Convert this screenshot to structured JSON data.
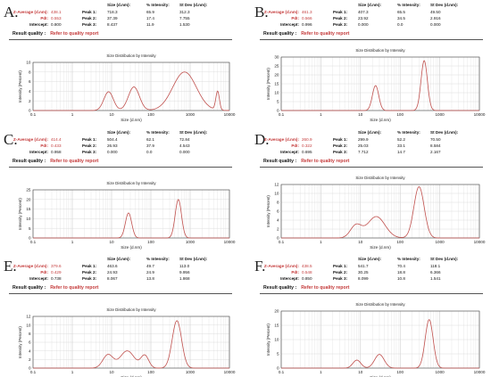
{
  "labels": {
    "size_header": "Size (d.nm):",
    "intensity_header": "% Intensity:",
    "stdev_header": "St Dev (d.nm):",
    "z_average": "Z-Average (d.nm):",
    "pdi": "PdI:",
    "intercept": "Intercept:",
    "result_quality": "Result quality :",
    "refer": "Refer to quality report",
    "peak1": "Peak 1:",
    "peak2": "Peak 2:",
    "peak3": "Peak 3:"
  },
  "colors": {
    "trace": "#c0504d",
    "highlight": "#c43a3a",
    "axis": "#444444",
    "grid": "#d6d6d6"
  },
  "panels": [
    {
      "letter": "A.",
      "z_average": "438.1",
      "pdi": "0.553",
      "intercept": "0.800",
      "peaks": [
        {
          "label": "Peak 1:",
          "size": "718.3",
          "intensity": "65.9",
          "stdev": "312.3"
        },
        {
          "label": "Peak 2:",
          "size": "37.39",
          "intensity": "17.4",
          "stdev": "7.755"
        },
        {
          "label": "Peak 3:",
          "size": "8.437",
          "intensity": "11.9",
          "stdev": "1.530"
        }
      ]
    },
    {
      "letter": "B.",
      "z_average": "461.3",
      "pdi": "0.566",
      "intercept": "0.996",
      "peaks": [
        {
          "label": "Peak 1:",
          "size": "407.3",
          "intensity": "65.5",
          "stdev": "49.50"
        },
        {
          "label": "Peak 2:",
          "size": "23.92",
          "intensity": "34.5",
          "stdev": "2.916"
        },
        {
          "label": "Peak 3:",
          "size": "0.000",
          "intensity": "0.0",
          "stdev": "0.000"
        }
      ]
    },
    {
      "letter": "C.",
      "z_average": "414.4",
      "pdi": "0.433",
      "intercept": "0.958",
      "peaks": [
        {
          "label": "Peak 1:",
          "size": "504.4",
          "intensity": "62.1",
          "stdev": "72.84"
        },
        {
          "label": "Peak 2:",
          "size": "26.93",
          "intensity": "37.9",
          "stdev": "4.543"
        },
        {
          "label": "Peak 3:",
          "size": "0.000",
          "intensity": "0.0",
          "stdev": "0.000"
        }
      ]
    },
    {
      "letter": "D.",
      "z_average": "260.9",
      "pdi": "0.322",
      "intercept": "0.695",
      "peaks": [
        {
          "label": "Peak 1:",
          "size": "299.9",
          "intensity": "52.2",
          "stdev": "70.50"
        },
        {
          "label": "Peak 2:",
          "size": "25.03",
          "intensity": "33.1",
          "stdev": "8.584"
        },
        {
          "label": "Peak 3:",
          "size": "7.712",
          "intensity": "14.7",
          "stdev": "2.167"
        }
      ]
    },
    {
      "letter": "E.",
      "z_average": "379.6",
      "pdi": "0.429",
      "intercept": "0.738",
      "peaks": [
        {
          "label": "Peak 1:",
          "size": "463.6",
          "intensity": "49.7",
          "stdev": "113.0"
        },
        {
          "label": "Peak 2:",
          "size": "24.93",
          "intensity": "24.9",
          "stdev": "9.956"
        },
        {
          "label": "Peak 3:",
          "size": "8.067",
          "intensity": "13.8",
          "stdev": "1.868"
        }
      ]
    },
    {
      "letter": "F.",
      "z_average": "438.5",
      "pdi": "0.548",
      "intercept": "0.850",
      "peaks": [
        {
          "label": "Peak 1:",
          "size": "541.7",
          "intensity": "70.4",
          "stdev": "118.1"
        },
        {
          "label": "Peak 2:",
          "size": "30.25",
          "intensity": "18.8",
          "stdev": "6.366"
        },
        {
          "label": "Peak 3:",
          "size": "8.099",
          "intensity": "10.8",
          "stdev": "1.541"
        }
      ]
    }
  ],
  "chart_data": [
    {
      "panel": "A.",
      "type": "line",
      "title": "Size Distribution by Intensity",
      "xlabel": "Size (d.nm)",
      "ylabel": "Intensity (Percent)",
      "x_scale": "log",
      "xlim": [
        0.1,
        10000
      ],
      "ylim": [
        0,
        10
      ],
      "yticks": [
        0,
        2,
        4,
        6,
        8,
        10
      ],
      "xticks": [
        0.1,
        1,
        10,
        100,
        1000,
        10000
      ],
      "xtick_labels": [
        "0.1",
        "1",
        "10",
        "100",
        "1000",
        "10000"
      ],
      "grid": true,
      "peaks": [
        {
          "x": 8.4,
          "y": 3.9,
          "width_decades": 0.12
        },
        {
          "x": 37,
          "y": 4.9,
          "width_decades": 0.14
        },
        {
          "x": 720,
          "y": 8.0,
          "width_decades": 0.3
        },
        {
          "x": 5000,
          "y": 3.9,
          "width_decades": 0.045
        }
      ]
    },
    {
      "panel": "B.",
      "type": "line",
      "title": "Size Distribution by Intensity",
      "xlabel": "Size (d.nm)",
      "ylabel": "Intensity (Percent)",
      "x_scale": "log",
      "xlim": [
        0.1,
        10000
      ],
      "ylim": [
        0,
        30
      ],
      "yticks": [
        0,
        5,
        10,
        15,
        20,
        25,
        30
      ],
      "xticks": [
        0.1,
        1,
        10,
        100,
        1000,
        10000
      ],
      "xtick_labels": [
        "0.1",
        "1",
        "10",
        "100",
        "1000",
        "10000"
      ],
      "grid": true,
      "peaks": [
        {
          "x": 24,
          "y": 14,
          "width_decades": 0.08
        },
        {
          "x": 405,
          "y": 28,
          "width_decades": 0.08
        }
      ]
    },
    {
      "panel": "C.",
      "type": "line",
      "title": "Size Distribution by Intensity",
      "xlabel": "Size (d.nm)",
      "ylabel": "Intensity (Percent)",
      "x_scale": "log",
      "xlim": [
        0.1,
        10000
      ],
      "ylim": [
        0,
        25
      ],
      "yticks": [
        0,
        5,
        10,
        15,
        20,
        25
      ],
      "xticks": [
        0.1,
        1,
        10,
        100,
        1000,
        10000
      ],
      "xtick_labels": [
        "0.1",
        "1",
        "10",
        "100",
        "1000",
        "10000"
      ],
      "grid": true,
      "peaks": [
        {
          "x": 27,
          "y": 13,
          "width_decades": 0.08
        },
        {
          "x": 500,
          "y": 20,
          "width_decades": 0.08
        }
      ]
    },
    {
      "panel": "D.",
      "type": "line",
      "title": "Size Distribution by Intensity",
      "xlabel": "Size (d.nm)",
      "ylabel": "Intensity (Percent)",
      "x_scale": "log",
      "xlim": [
        0.1,
        10000
      ],
      "ylim": [
        0,
        12
      ],
      "yticks": [
        0,
        2,
        4,
        6,
        8,
        10,
        12
      ],
      "xticks": [
        0.1,
        1,
        10,
        100,
        1000,
        10000
      ],
      "xtick_labels": [
        "0.1",
        "1",
        "10",
        "100",
        "1000",
        "10000"
      ],
      "grid": true,
      "peaks": [
        {
          "x": 7.7,
          "y": 2.8,
          "width_decades": 0.14
        },
        {
          "x": 25,
          "y": 4.8,
          "width_decades": 0.22
        },
        {
          "x": 300,
          "y": 11.5,
          "width_decades": 0.13
        }
      ]
    },
    {
      "panel": "E.",
      "type": "line",
      "title": "Size Distribution by Intensity",
      "xlabel": "Size (d.nm)",
      "ylabel": "Intensity (Percent)",
      "x_scale": "log",
      "xlim": [
        0.1,
        10000
      ],
      "ylim": [
        0,
        12
      ],
      "yticks": [
        0,
        2,
        4,
        6,
        8,
        10,
        12
      ],
      "xticks": [
        0.1,
        1,
        10,
        100,
        1000,
        10000
      ],
      "xtick_labels": [
        "0.1",
        "1",
        "10",
        "100",
        "1000",
        "10000"
      ],
      "grid": true,
      "peaks": [
        {
          "x": 8.1,
          "y": 3.1,
          "width_decades": 0.13
        },
        {
          "x": 25,
          "y": 4.0,
          "width_decades": 0.18
        },
        {
          "x": 70,
          "y": 2.9,
          "width_decades": 0.1
        },
        {
          "x": 460,
          "y": 11.0,
          "width_decades": 0.12
        }
      ]
    },
    {
      "panel": "F.",
      "type": "line",
      "title": "Size Distribution by Intensity",
      "xlabel": "Size (d.nm)",
      "ylabel": "Intensity (Percent)",
      "x_scale": "log",
      "xlim": [
        0.1,
        10000
      ],
      "ylim": [
        0,
        20
      ],
      "yticks": [
        0,
        5,
        10,
        15,
        20
      ],
      "xticks": [
        0.1,
        1,
        10,
        100,
        1000,
        10000
      ],
      "xtick_labels": [
        "0.1",
        "1",
        "10",
        "100",
        "1000",
        "10000"
      ],
      "grid": true,
      "peaks": [
        {
          "x": 8.1,
          "y": 2.8,
          "width_decades": 0.1
        },
        {
          "x": 30,
          "y": 4.8,
          "width_decades": 0.12
        },
        {
          "x": 540,
          "y": 17.0,
          "width_decades": 0.1
        }
      ]
    }
  ]
}
